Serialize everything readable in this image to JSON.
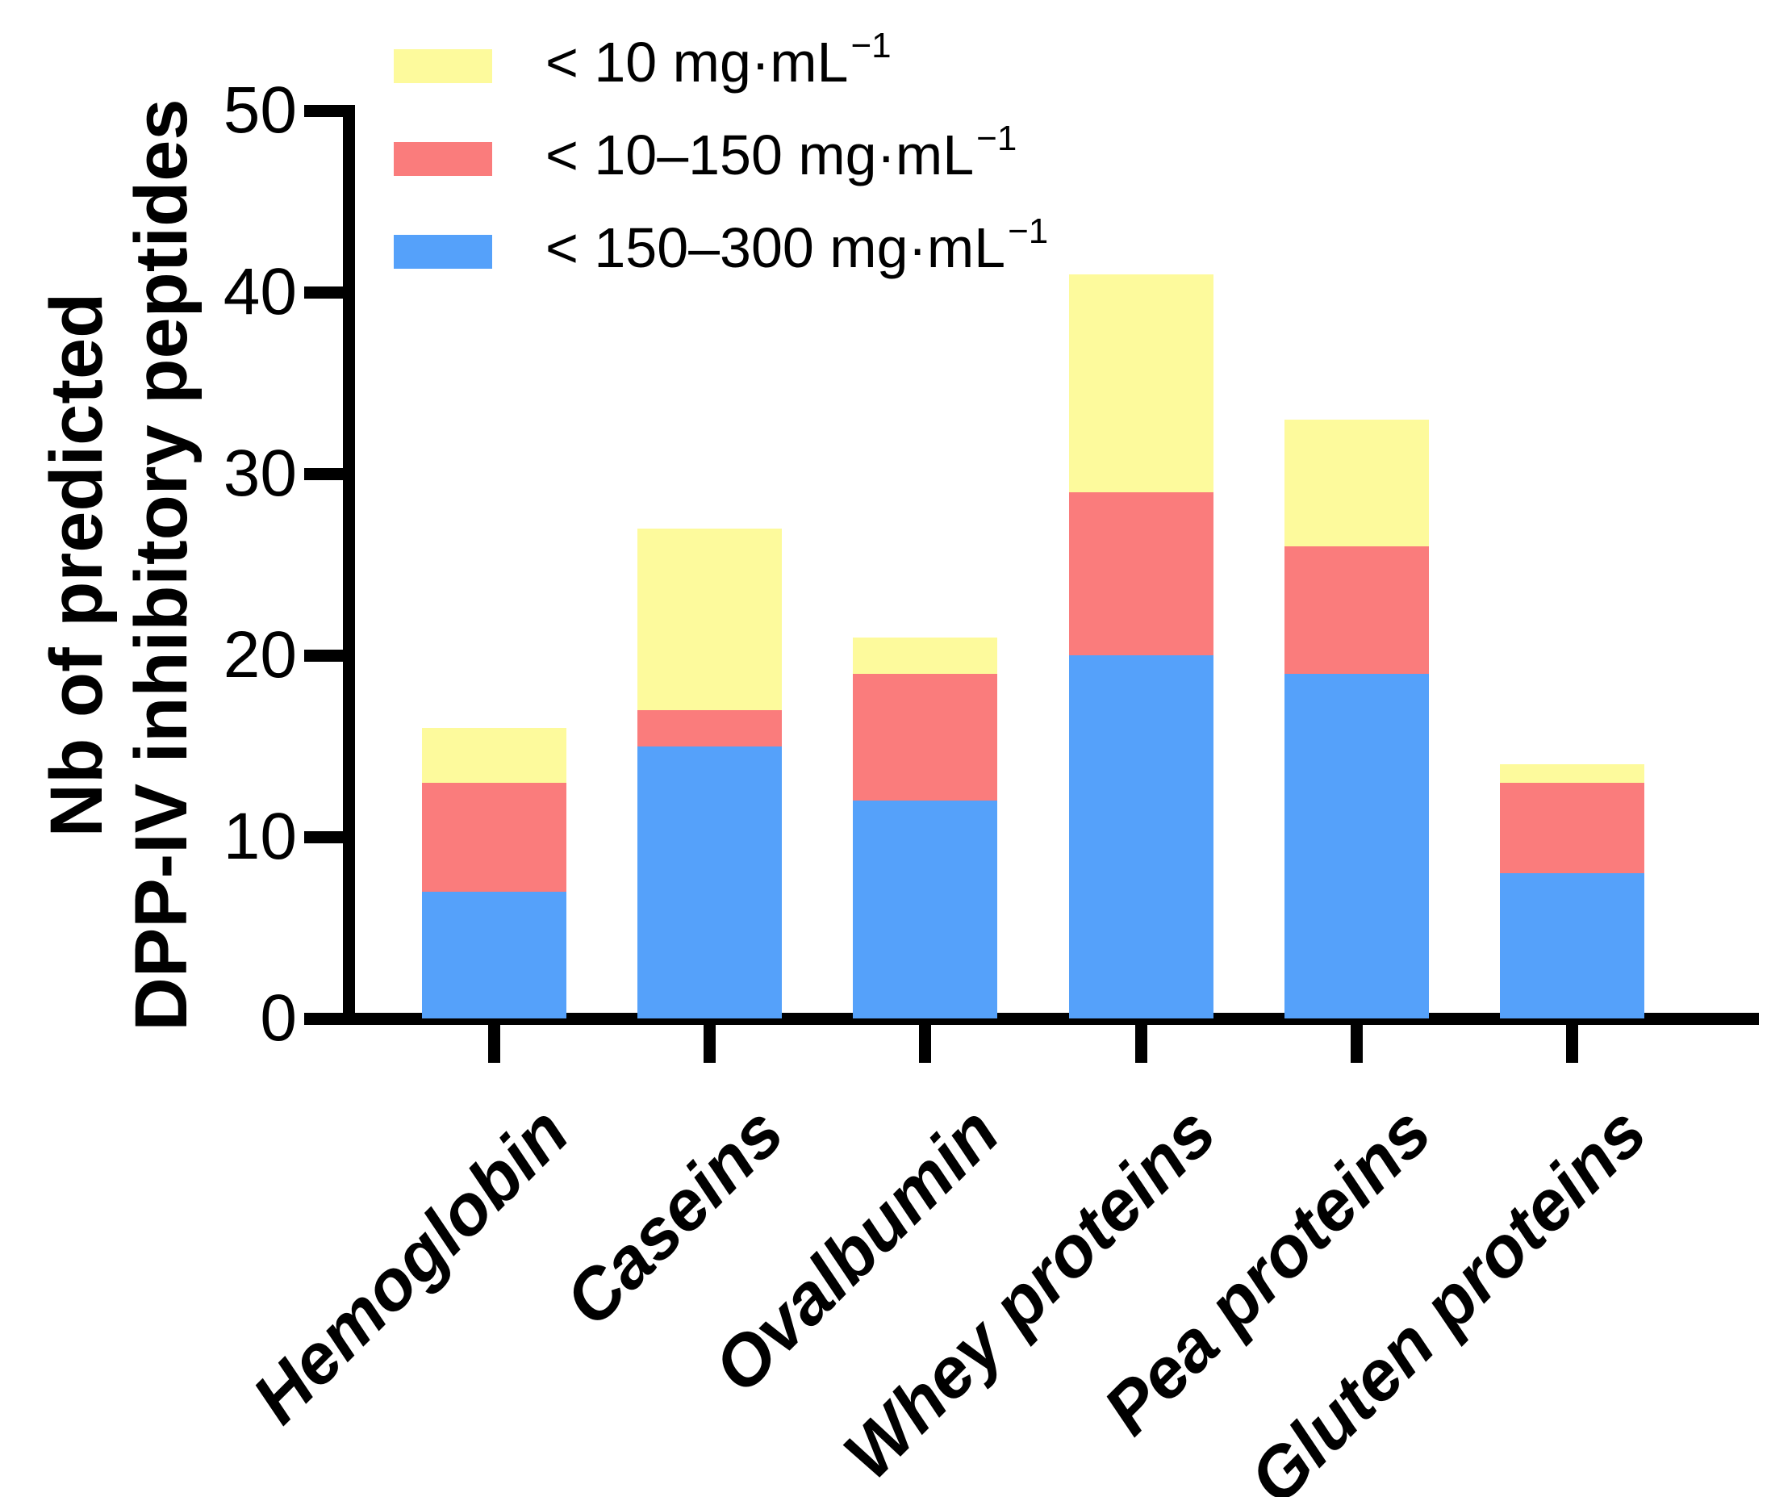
{
  "y_axis": {
    "title_line1": "Nb of predicted",
    "title_line2": "DPP-IV inhibitory peptides"
  },
  "legend": {
    "items": [
      {
        "main": "< 10 mg·mL",
        "sup": "−1"
      },
      {
        "main": "< 10–150 mg·mL",
        "sup": "−1"
      },
      {
        "main": "< 150–300 mg·mL",
        "sup": "−1"
      }
    ]
  },
  "chart_data": {
    "type": "bar",
    "stacked": true,
    "title": "",
    "xlabel": "",
    "ylabel": "Nb of predicted DPP-IV inhibitory peptides",
    "categories": [
      "Hemoglobin",
      "Caseins",
      "Ovalbumin",
      "Whey proteins",
      "Pea proteins",
      "Gluten proteins"
    ],
    "series": [
      {
        "name": "< 10 mg·mL−1",
        "color": "#FDFA9C",
        "values": [
          3,
          10,
          2,
          12,
          7,
          1
        ]
      },
      {
        "name": "< 10–150 mg·mL−1",
        "color": "#FA7C7C",
        "values": [
          6,
          2,
          7,
          9,
          7,
          5
        ]
      },
      {
        "name": "< 150–300 mg·mL−1",
        "color": "#55A1FA",
        "values": [
          7,
          15,
          12,
          20,
          19,
          8
        ]
      }
    ],
    "ylim": [
      0,
      50
    ],
    "yticks": [
      0,
      10,
      20,
      30,
      40,
      50
    ],
    "grid": false,
    "legend_position": "top-left",
    "bar_color_order_top_to_bottom": [
      "#FDFA9C",
      "#FA7C7C",
      "#55A1FA"
    ]
  }
}
